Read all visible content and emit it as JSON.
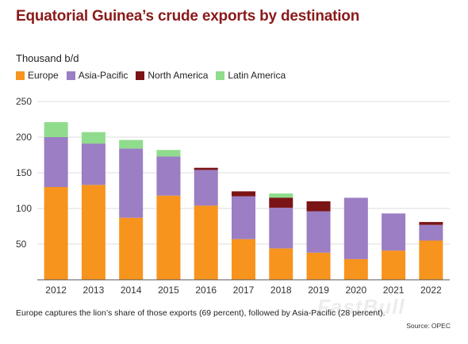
{
  "title": "Equatorial Guinea’s crude exports by destination",
  "unit_label": "Thousand b/d",
  "caption": "Europe captures the lion’s share of those exports (69 percent), followed by Asia-Pacific (28 percent).",
  "source": "Source: OPEC",
  "watermark": "FastBull",
  "chart_data": {
    "type": "bar",
    "stacked": true,
    "ylabel": "Thousand b/d",
    "ylim": [
      0,
      250
    ],
    "yticks": [
      50,
      100,
      150,
      200,
      250
    ],
    "grid": true,
    "legend_position": "top-left",
    "categories": [
      "2012",
      "2013",
      "2014",
      "2015",
      "2016",
      "2017",
      "2018",
      "2019",
      "2020",
      "2021",
      "2022"
    ],
    "series": [
      {
        "name": "Europe",
        "color": "#f7941d",
        "values": [
          130,
          133,
          87,
          118,
          104,
          57,
          44,
          38,
          29,
          41,
          55
        ]
      },
      {
        "name": "Asia-Pacific",
        "color": "#9b7ec4",
        "values": [
          70,
          58,
          97,
          55,
          50,
          60,
          57,
          58,
          86,
          52,
          22
        ]
      },
      {
        "name": "North America",
        "color": "#7b1416",
        "values": [
          0,
          0,
          0,
          0,
          3,
          7,
          14,
          14,
          0,
          0,
          4
        ]
      },
      {
        "name": "Latin America",
        "color": "#8fdc8c",
        "values": [
          21,
          16,
          12,
          9,
          0,
          0,
          6,
          0,
          0,
          0,
          0
        ]
      }
    ]
  }
}
